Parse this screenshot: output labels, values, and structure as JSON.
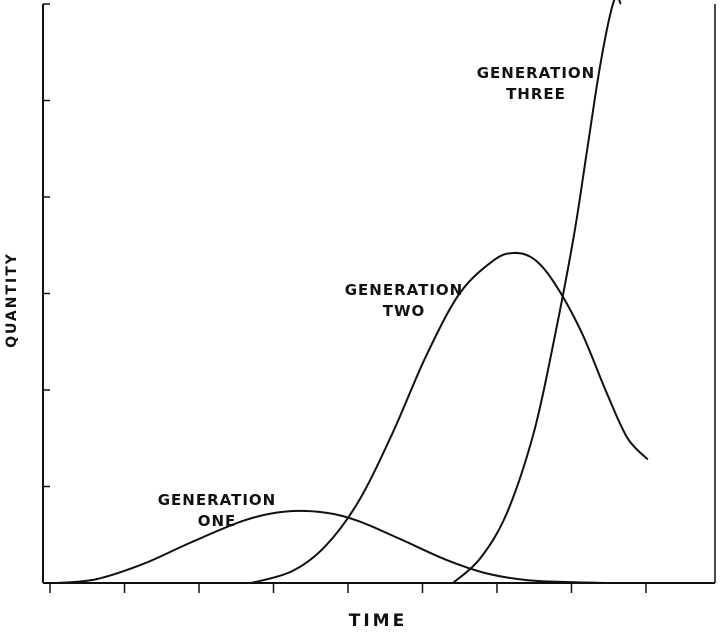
{
  "chart_data": {
    "type": "line",
    "title": "",
    "xlabel": "TIME",
    "ylabel": "QUANTITY",
    "xlim": [
      0,
      10
    ],
    "ylim": [
      0,
      6
    ],
    "grid": false,
    "x_tick_count": 9,
    "y_tick_count": 6,
    "series": [
      {
        "name": "GENERATION ONE",
        "label_lines": [
          "GENERATION",
          "ONE"
        ],
        "color": "#111111",
        "x": [
          0.2,
          0.8,
          1.5,
          2.2,
          3.0,
          3.6,
          4.2,
          4.7,
          5.3,
          6.0,
          6.6,
          7.2,
          7.8,
          8.4
        ],
        "y": [
          0.0,
          0.04,
          0.2,
          0.42,
          0.65,
          0.74,
          0.73,
          0.64,
          0.46,
          0.24,
          0.1,
          0.03,
          0.01,
          0.0
        ]
      },
      {
        "name": "GENERATION TWO",
        "label_lines": [
          "GENERATION",
          "TWO"
        ],
        "color": "#111111",
        "x": [
          3.1,
          3.7,
          4.2,
          4.7,
          5.2,
          5.7,
          6.2,
          6.7,
          7.0,
          7.3,
          7.6,
          8.0,
          8.4,
          8.7,
          9.0
        ],
        "y": [
          0.0,
          0.12,
          0.38,
          0.85,
          1.55,
          2.35,
          3.0,
          3.34,
          3.42,
          3.36,
          3.12,
          2.62,
          1.95,
          1.5,
          1.28
        ]
      },
      {
        "name": "GENERATION THREE",
        "label_lines": [
          "GENERATION",
          "THREE"
        ],
        "color": "#111111",
        "x": [
          6.1,
          6.5,
          6.9,
          7.3,
          7.6,
          7.9,
          8.1,
          8.3,
          8.5,
          8.6
        ],
        "y": [
          0.0,
          0.25,
          0.72,
          1.55,
          2.5,
          3.6,
          4.5,
          5.4,
          6.3,
          6.0
        ]
      }
    ]
  }
}
